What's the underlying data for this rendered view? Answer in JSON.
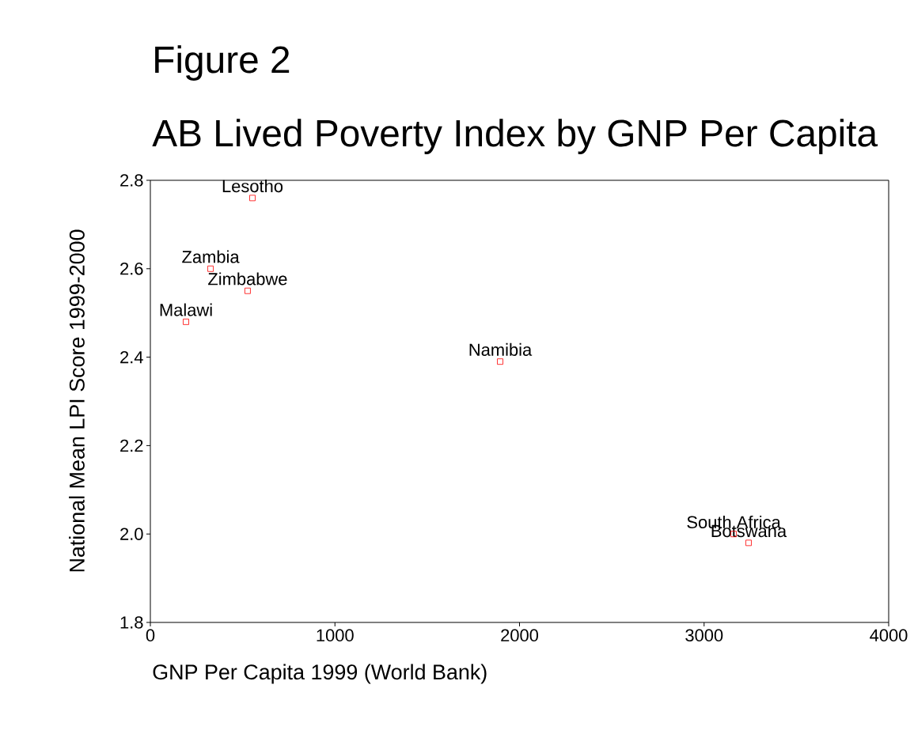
{
  "chart_data": {
    "type": "scatter",
    "title": "Figure 2",
    "subtitle": "AB Lived Poverty Index by GNP Per Capita",
    "xlabel": "GNP Per Capita 1999 (World Bank)",
    "ylabel": "National Mean LPI Score 1999-2000",
    "x": [
      553,
      326,
      527,
      193,
      1895,
      3160,
      3241
    ],
    "values": [
      2.76,
      2.6,
      2.55,
      2.48,
      2.39,
      2.0,
      1.98
    ],
    "color": "#ff0000",
    "marker": "square",
    "annotations": [
      {
        "text": "Lesotho",
        "x": 553,
        "y": 2.76
      },
      {
        "text": "Zambia",
        "x": 326,
        "y": 2.6
      },
      {
        "text": "Zimbabwe",
        "x": 527,
        "y": 2.55
      },
      {
        "text": "Malawi",
        "x": 193,
        "y": 2.48
      },
      {
        "text": "Namibia",
        "x": 1895,
        "y": 2.39
      },
      {
        "text": "South Africa",
        "x": 3160,
        "y": 2.0
      },
      {
        "text": "Botswana",
        "x": 3241,
        "y": 1.98
      }
    ],
    "xlim": [
      0,
      4000
    ],
    "ylim": [
      1.8,
      2.8
    ],
    "xticks": [
      0,
      1000,
      2000,
      3000,
      4000
    ],
    "yticks": [
      {
        "value": 1.8,
        "label": "1.8"
      },
      {
        "value": 2.0,
        "label": "2.0"
      },
      {
        "value": 2.2,
        "label": "2.2"
      },
      {
        "value": 2.4,
        "label": "2.4"
      },
      {
        "value": 2.6,
        "label": "2.6"
      },
      {
        "value": 2.8,
        "label": "2.8"
      }
    ],
    "grid": false
  }
}
